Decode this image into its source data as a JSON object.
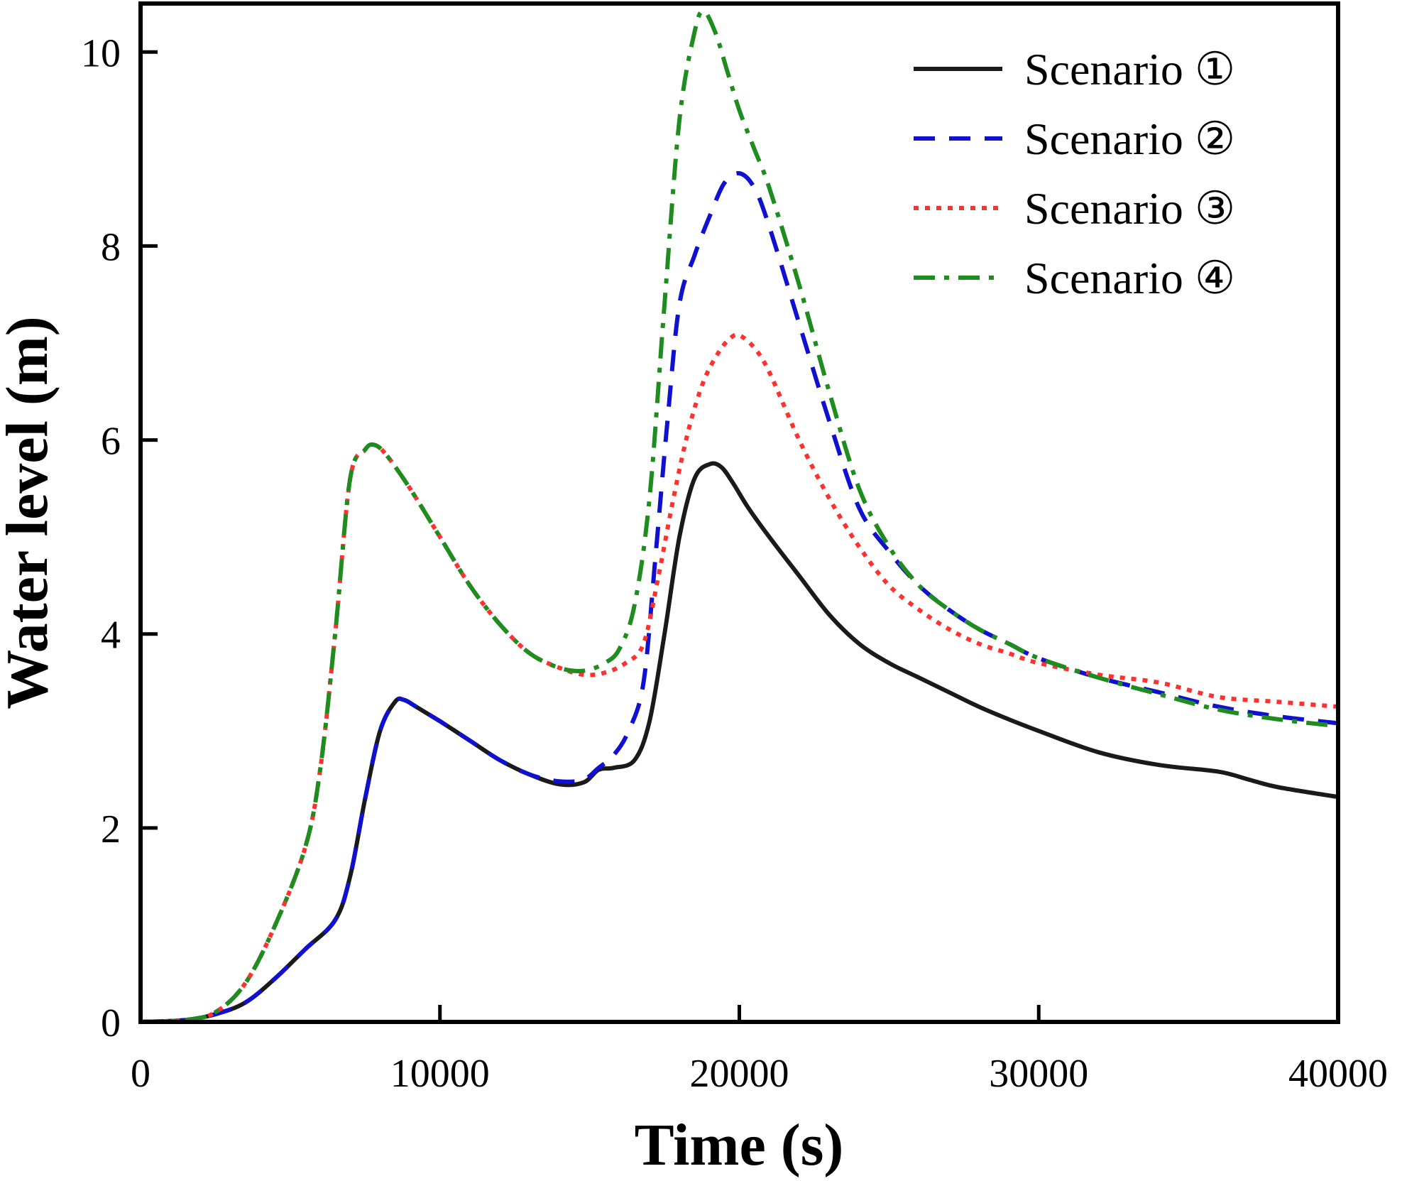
{
  "chart_data": {
    "type": "line",
    "xlabel": "Time (s)",
    "ylabel": "Water level (m)",
    "xlim": [
      0,
      40000
    ],
    "ylim": [
      0,
      10.5
    ],
    "xticks": [
      0,
      10000,
      20000,
      30000,
      40000
    ],
    "xtick_labels": [
      "0",
      "10000",
      "20000",
      "30000",
      "40000"
    ],
    "yticks": [
      0,
      2,
      4,
      6,
      8,
      10
    ],
    "ytick_labels": [
      "0",
      "2",
      "4",
      "6",
      "8",
      "10"
    ],
    "grid": false,
    "legend_position": "top-right",
    "series": [
      {
        "name": "Scenario ①",
        "color": "#1a1a1a",
        "style": "solid",
        "x": [
          0,
          1500,
          2500,
          3500,
          4500,
          5500,
          6500,
          7000,
          7500,
          8000,
          8500,
          8800,
          9200,
          10000,
          11000,
          12000,
          13000,
          14000,
          14800,
          15300,
          15800,
          16500,
          17000,
          17500,
          18000,
          18500,
          19000,
          19400,
          19800,
          20300,
          21000,
          22000,
          23000,
          24000,
          25000,
          26000,
          27000,
          28000,
          29000,
          30000,
          32000,
          34000,
          36000,
          37000,
          38000,
          40000
        ],
        "y": [
          0,
          0.02,
          0.08,
          0.2,
          0.45,
          0.75,
          1.05,
          1.5,
          2.3,
          3.0,
          3.3,
          3.32,
          3.25,
          3.1,
          2.9,
          2.7,
          2.55,
          2.45,
          2.47,
          2.6,
          2.62,
          2.7,
          3.1,
          4.0,
          5.0,
          5.6,
          5.75,
          5.72,
          5.55,
          5.3,
          5.0,
          4.6,
          4.2,
          3.9,
          3.7,
          3.55,
          3.4,
          3.25,
          3.12,
          3.0,
          2.78,
          2.65,
          2.58,
          2.5,
          2.42,
          2.32
        ]
      },
      {
        "name": "Scenario ②",
        "color": "#1010d0",
        "style": "dashed",
        "x": [
          0,
          1500,
          2500,
          3500,
          4500,
          5500,
          6500,
          7000,
          7500,
          8000,
          8500,
          8800,
          9200,
          10000,
          11000,
          12000,
          13000,
          14000,
          14800,
          15300,
          15800,
          16300,
          16800,
          17200,
          17600,
          18000,
          18500,
          19000,
          19500,
          20000,
          20500,
          21000,
          22000,
          23000,
          24000,
          25000,
          26000,
          27000,
          28000,
          29000,
          30000,
          32000,
          34000,
          36000,
          38000,
          40000
        ],
        "y": [
          0,
          0.02,
          0.08,
          0.2,
          0.45,
          0.75,
          1.05,
          1.5,
          2.3,
          3.0,
          3.3,
          3.32,
          3.25,
          3.1,
          2.9,
          2.7,
          2.55,
          2.48,
          2.5,
          2.62,
          2.75,
          3.0,
          3.5,
          4.8,
          6.2,
          7.4,
          7.9,
          8.3,
          8.65,
          8.75,
          8.6,
          8.2,
          7.2,
          6.2,
          5.3,
          4.85,
          4.5,
          4.25,
          4.05,
          3.9,
          3.75,
          3.55,
          3.4,
          3.25,
          3.15,
          3.08
        ]
      },
      {
        "name": "Scenario ③",
        "color": "#ff3030",
        "style": "dotted",
        "x": [
          0,
          1500,
          2500,
          3500,
          4500,
          5500,
          6000,
          6500,
          7000,
          7500,
          7800,
          8200,
          9000,
          10000,
          11000,
          12000,
          13000,
          14000,
          14800,
          15500,
          16200,
          16800,
          17300,
          17800,
          18300,
          18800,
          19300,
          19700,
          20000,
          20500,
          21000,
          22000,
          23000,
          24000,
          25000,
          26000,
          27000,
          28000,
          29000,
          30000,
          32000,
          34000,
          36000,
          38000,
          40000
        ],
        "y": [
          0,
          0.02,
          0.1,
          0.4,
          1.0,
          1.8,
          2.6,
          4.0,
          5.6,
          5.9,
          5.95,
          5.85,
          5.5,
          5.0,
          4.5,
          4.1,
          3.8,
          3.65,
          3.58,
          3.6,
          3.7,
          3.9,
          4.6,
          5.4,
          6.1,
          6.6,
          6.9,
          7.05,
          7.08,
          6.95,
          6.7,
          6.0,
          5.4,
          4.9,
          4.5,
          4.25,
          4.05,
          3.9,
          3.8,
          3.7,
          3.58,
          3.5,
          3.35,
          3.3,
          3.25
        ]
      },
      {
        "name": "Scenario ④",
        "color": "#1e8c1e",
        "style": "dashdot",
        "x": [
          0,
          1500,
          2500,
          3500,
          4500,
          5500,
          6000,
          6500,
          7000,
          7500,
          7800,
          8200,
          9000,
          10000,
          11000,
          12000,
          13000,
          14000,
          14800,
          15500,
          16000,
          16500,
          17000,
          17500,
          18000,
          18500,
          18800,
          19200,
          19600,
          20000,
          20500,
          21000,
          22000,
          23000,
          24000,
          25000,
          26000,
          27000,
          28000,
          29000,
          30000,
          32000,
          34000,
          36000,
          38000,
          40000
        ],
        "y": [
          0,
          0.02,
          0.1,
          0.4,
          1.0,
          1.8,
          2.6,
          4.0,
          5.6,
          5.9,
          5.95,
          5.85,
          5.5,
          5.0,
          4.5,
          4.1,
          3.8,
          3.65,
          3.62,
          3.7,
          3.85,
          4.3,
          5.4,
          7.4,
          9.3,
          10.2,
          10.42,
          10.2,
          9.8,
          9.4,
          9.0,
          8.6,
          7.6,
          6.5,
          5.5,
          4.9,
          4.5,
          4.25,
          4.05,
          3.9,
          3.75,
          3.55,
          3.38,
          3.22,
          3.12,
          3.05
        ]
      }
    ]
  }
}
